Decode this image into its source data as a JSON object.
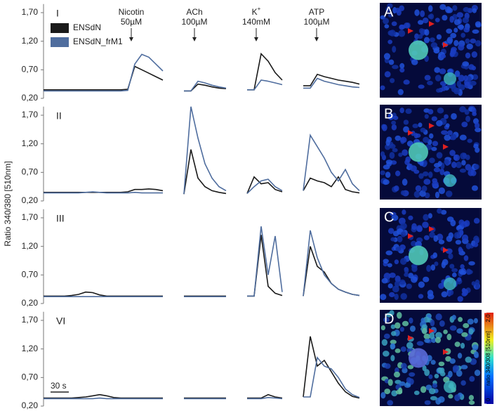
{
  "chart_data": [
    {
      "type": "line",
      "ylabel": "Ratio 340/380 [510nm]",
      "panel": "I",
      "annotations": [
        {
          "text": "Nicotin",
          "sub": "50µM"
        },
        {
          "text": "ACh",
          "sub": "100µM"
        },
        {
          "text": "K",
          "sup": "+",
          "sub": "140mM"
        },
        {
          "text": "ATP",
          "sub": "100µM"
        }
      ],
      "ylim": [
        0.2,
        1.85
      ],
      "yticks": [
        {
          "value": 0.2,
          "label": "0,20"
        },
        {
          "value": 0.7,
          "label": "0,70"
        },
        {
          "value": 1.2,
          "label": "1,20"
        },
        {
          "value": 1.7,
          "label": "1,70"
        }
      ],
      "series": [
        {
          "name": "ENSdN",
          "color": "#1a1a1a",
          "values": [
            0.35,
            0.35,
            0.35,
            0.35,
            0.35,
            0.35,
            0.35,
            0.35,
            0.35,
            0.35,
            0.35,
            0.35,
            0.36,
            0.76,
            0.7,
            0.64,
            0.58,
            0.52,
            null,
            null,
            0.33,
            0.33,
            0.45,
            0.43,
            0.4,
            0.38,
            0.37,
            null,
            null,
            0.35,
            0.35,
            0.98,
            0.85,
            0.65,
            0.52,
            null,
            null,
            0.42,
            0.42,
            0.62,
            0.58,
            0.55,
            0.52,
            0.5,
            0.48,
            0.45
          ]
        },
        {
          "name": "ENSdN_frM1",
          "color": "#4f6d9e",
          "values": [
            0.33,
            0.33,
            0.33,
            0.33,
            0.33,
            0.33,
            0.33,
            0.33,
            0.33,
            0.33,
            0.33,
            0.33,
            0.34,
            0.8,
            0.97,
            0.92,
            0.8,
            0.68,
            null,
            null,
            0.33,
            0.33,
            0.5,
            0.47,
            0.43,
            0.4,
            0.38,
            null,
            null,
            0.35,
            0.35,
            0.52,
            0.5,
            0.47,
            0.44,
            null,
            null,
            0.38,
            0.38,
            0.55,
            0.5,
            0.47,
            0.44,
            0.42,
            0.4,
            0.39
          ]
        }
      ]
    },
    {
      "type": "line",
      "panel": "II",
      "ylim": [
        0.2,
        1.85
      ],
      "yticks": [
        {
          "value": 0.2,
          "label": "0,20"
        },
        {
          "value": 0.7,
          "label": "0,70"
        },
        {
          "value": 1.2,
          "label": "1,20"
        },
        {
          "value": 1.7,
          "label": "1,70"
        }
      ],
      "series": [
        {
          "color": "#1a1a1a",
          "values": [
            0.35,
            0.35,
            0.35,
            0.35,
            0.35,
            0.35,
            0.35,
            0.35,
            0.35,
            0.35,
            0.35,
            0.35,
            0.36,
            0.4,
            0.4,
            0.41,
            0.4,
            0.38,
            null,
            null,
            0.32,
            1.1,
            0.6,
            0.45,
            0.38,
            0.35,
            0.33,
            null,
            null,
            0.33,
            0.62,
            0.5,
            0.52,
            0.4,
            0.36,
            null,
            null,
            0.38,
            0.6,
            0.55,
            0.52,
            0.45,
            0.62,
            0.4,
            0.36,
            0.34
          ]
        },
        {
          "color": "#4f6d9e",
          "values": [
            0.34,
            0.34,
            0.34,
            0.34,
            0.34,
            0.34,
            0.35,
            0.36,
            0.35,
            0.34,
            0.34,
            0.34,
            0.34,
            0.35,
            0.34,
            0.34,
            0.34,
            0.34,
            null,
            null,
            0.32,
            1.85,
            1.3,
            0.85,
            0.6,
            0.45,
            0.38,
            null,
            null,
            0.33,
            0.45,
            0.55,
            0.58,
            0.45,
            0.38,
            null,
            null,
            0.38,
            1.35,
            1.15,
            0.95,
            0.7,
            0.55,
            0.75,
            0.5,
            0.38
          ]
        }
      ]
    },
    {
      "type": "line",
      "panel": "III",
      "ylim": [
        0.2,
        1.85
      ],
      "yticks": [
        {
          "value": 0.2,
          "label": "0,20"
        },
        {
          "value": 0.7,
          "label": "0,70"
        },
        {
          "value": 1.2,
          "label": "1,20"
        },
        {
          "value": 1.7,
          "label": "1,70"
        }
      ],
      "series": [
        {
          "color": "#1a1a1a",
          "values": [
            0.33,
            0.33,
            0.33,
            0.33,
            0.34,
            0.36,
            0.4,
            0.39,
            0.35,
            0.33,
            0.33,
            0.33,
            0.33,
            0.33,
            0.33,
            0.33,
            0.33,
            0.33,
            null,
            null,
            0.33,
            0.33,
            0.33,
            0.33,
            0.33,
            0.33,
            0.33,
            null,
            null,
            0.33,
            0.33,
            1.4,
            0.5,
            0.38,
            0.34,
            null,
            null,
            0.33,
            1.2,
            0.85,
            0.75,
            0.55,
            0.45,
            0.4,
            0.36,
            0.34
          ]
        },
        {
          "color": "#4f6d9e",
          "values": [
            0.32,
            0.32,
            0.32,
            0.32,
            0.32,
            0.32,
            0.32,
            0.32,
            0.32,
            0.32,
            0.32,
            0.32,
            0.32,
            0.32,
            0.32,
            0.32,
            0.32,
            0.32,
            null,
            null,
            0.32,
            0.32,
            0.32,
            0.32,
            0.32,
            0.32,
            0.32,
            null,
            null,
            0.33,
            0.33,
            1.55,
            0.7,
            1.38,
            0.4,
            null,
            null,
            0.33,
            1.48,
            1.0,
            0.7,
            0.55,
            0.45,
            0.4,
            0.36,
            0.34
          ]
        }
      ]
    },
    {
      "type": "line",
      "panel": "VI",
      "scalebar": "30 s",
      "ylim": [
        0.2,
        1.85
      ],
      "yticks": [
        {
          "value": 0.2,
          "label": "0,20"
        },
        {
          "value": 0.7,
          "label": "0,70"
        },
        {
          "value": 1.2,
          "label": "1,20"
        },
        {
          "value": 1.7,
          "label": "1,70"
        }
      ],
      "series": [
        {
          "color": "#1a1a1a",
          "values": [
            0.34,
            0.34,
            0.34,
            0.34,
            0.34,
            0.35,
            0.36,
            0.38,
            0.4,
            0.38,
            0.35,
            0.34,
            0.34,
            0.34,
            0.34,
            0.34,
            0.34,
            0.34,
            null,
            null,
            0.34,
            0.34,
            0.34,
            0.34,
            0.34,
            0.34,
            0.34,
            null,
            null,
            0.34,
            0.34,
            0.34,
            0.4,
            0.36,
            0.34,
            null,
            null,
            0.36,
            1.42,
            0.9,
            1.0,
            0.8,
            0.6,
            0.45,
            0.37,
            0.34
          ]
        },
        {
          "color": "#4f6d9e",
          "values": [
            0.33,
            0.33,
            0.33,
            0.33,
            0.33,
            0.33,
            0.33,
            0.33,
            0.34,
            0.33,
            0.33,
            0.33,
            0.33,
            0.33,
            0.33,
            0.33,
            0.33,
            0.33,
            null,
            null,
            0.33,
            0.33,
            0.33,
            0.33,
            0.33,
            0.33,
            0.33,
            null,
            null,
            0.33,
            0.33,
            0.33,
            0.35,
            0.34,
            0.33,
            null,
            null,
            0.36,
            0.36,
            1.05,
            0.9,
            0.85,
            0.7,
            0.5,
            0.4,
            0.35
          ]
        }
      ]
    }
  ],
  "images": [
    {
      "label": "A"
    },
    {
      "label": "B"
    },
    {
      "label": "C"
    },
    {
      "label": "D"
    }
  ],
  "colorbar": {
    "label": "ratio 340/308 [510nm]",
    "ticks": [
      0,
      {
        "value": 2,
        "label": "2,0"
      }
    ]
  }
}
